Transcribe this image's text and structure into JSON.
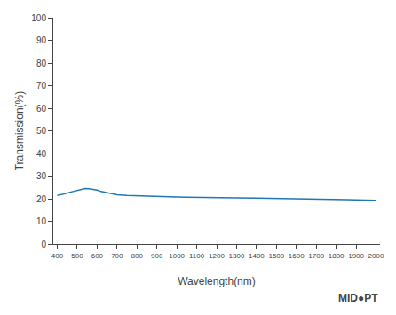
{
  "chart_data": {
    "type": "line",
    "xlabel": "Wavelength(nm)",
    "ylabel": "Transmission(%)",
    "x": [
      400,
      420,
      440,
      460,
      480,
      500,
      520,
      540,
      560,
      580,
      600,
      620,
      640,
      660,
      680,
      700,
      750,
      800,
      850,
      900,
      950,
      1000,
      1050,
      1100,
      1150,
      1200,
      1300,
      1400,
      1500,
      1600,
      1700,
      1800,
      1850,
      1900,
      1950,
      2000
    ],
    "values": [
      21.5,
      21.8,
      22.2,
      22.8,
      23.2,
      23.8,
      24.2,
      24.5,
      24.4,
      24.2,
      23.8,
      23.2,
      22.8,
      22.4,
      22.0,
      21.8,
      21.5,
      21.3,
      21.1,
      21.0,
      20.9,
      20.8,
      20.7,
      20.6,
      20.6,
      20.5,
      20.4,
      20.3,
      20.2,
      20.1,
      20.0,
      19.8,
      19.6,
      19.5,
      19.4,
      19.3
    ],
    "xlim": [
      380,
      2020
    ],
    "ylim": [
      0,
      100
    ],
    "xticks": [
      400,
      500,
      600,
      700,
      800,
      900,
      1000,
      1100,
      1200,
      1300,
      1400,
      1500,
      1600,
      1700,
      1800,
      1900,
      2000
    ],
    "yticks": [
      0,
      10,
      20,
      30,
      40,
      50,
      60,
      70,
      80,
      90,
      100
    ],
    "grid": false,
    "annotations": [
      {
        "text": "MID●PT"
      }
    ]
  }
}
